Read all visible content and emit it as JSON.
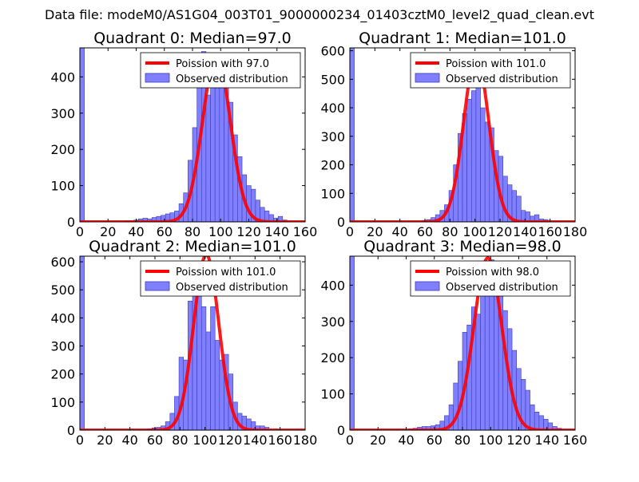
{
  "figure": {
    "suptitle": "Data file: modeM0/AS1G04_003T01_9000000234_01403cztM0_level2_quad_clean.evt"
  },
  "colors": {
    "bar_fill": "#8080ff",
    "bar_edge": "#3a3ac0",
    "curve": "#ff0000",
    "legend_border": "#000000"
  },
  "chart_data": [
    {
      "type": "bar",
      "title": "Quadrant 0: Median=97.0",
      "xlim": [
        0,
        160
      ],
      "ylim": [
        0,
        480
      ],
      "xticks": [
        0,
        20,
        40,
        60,
        80,
        100,
        120,
        140,
        160
      ],
      "yticks": [
        0,
        100,
        200,
        300,
        400
      ],
      "bin_width": 3.2,
      "legend": [
        "Poission with 97.0",
        "Observed distribution"
      ],
      "bins_x": [
        0,
        32,
        35.2,
        38.4,
        41.6,
        44.8,
        48,
        51.2,
        54.4,
        57.6,
        60.8,
        64,
        67.2,
        70.4,
        73.6,
        76.8,
        80,
        83.2,
        86.4,
        89.6,
        92.8,
        96,
        99.2,
        102.4,
        105.6,
        108.8,
        112,
        115.2,
        118.4,
        121.6,
        124.8,
        128,
        131.2,
        134.4,
        137.6,
        140.8,
        144
      ],
      "bins_y": [
        480,
        2,
        3,
        5,
        8,
        10,
        8,
        12,
        15,
        18,
        22,
        25,
        30,
        50,
        80,
        170,
        260,
        390,
        470,
        350,
        380,
        390,
        400,
        430,
        330,
        240,
        180,
        130,
        100,
        90,
        60,
        40,
        30,
        20,
        10,
        15,
        5
      ],
      "poisson_mean": 97.0,
      "poisson_peak": 460
    },
    {
      "type": "bar",
      "title": "Quadrant 1: Median=101.0",
      "xlim": [
        0,
        180
      ],
      "ylim": [
        0,
        610
      ],
      "xticks": [
        0,
        20,
        40,
        60,
        80,
        100,
        120,
        140,
        160,
        180
      ],
      "yticks": [
        0,
        100,
        200,
        300,
        400,
        500,
        600
      ],
      "bin_width": 3.6,
      "legend": [
        "Poission with 101.0",
        "Observed distribution"
      ],
      "bins_x": [
        0,
        57.6,
        61.2,
        64.8,
        68.4,
        72,
        75.6,
        79.2,
        82.8,
        86.4,
        90,
        93.6,
        97.2,
        100.8,
        104.4,
        108,
        111.6,
        115.2,
        118.8,
        122.4,
        126,
        129.6,
        133.2,
        136.8,
        140.4,
        144,
        147.6,
        151.2,
        154.8
      ],
      "bins_y": [
        610,
        5,
        8,
        15,
        25,
        40,
        60,
        110,
        200,
        310,
        380,
        430,
        460,
        480,
        400,
        350,
        330,
        250,
        230,
        160,
        130,
        110,
        90,
        40,
        35,
        20,
        25,
        10,
        8
      ],
      "poisson_mean": 101.0,
      "poisson_peak": 580
    },
    {
      "type": "bar",
      "title": "Quadrant 2: Median=101.0",
      "xlim": [
        0,
        180
      ],
      "ylim": [
        0,
        620
      ],
      "xticks": [
        0,
        20,
        40,
        60,
        80,
        100,
        120,
        140,
        160,
        180
      ],
      "yticks": [
        0,
        100,
        200,
        300,
        400,
        500,
        600
      ],
      "bin_width": 3.6,
      "legend": [
        "Poission with 101.0",
        "Observed distribution"
      ],
      "bins_x": [
        0,
        54,
        57.6,
        61.2,
        64.8,
        68.4,
        72,
        75.6,
        79.2,
        82.8,
        86.4,
        90,
        93.6,
        97.2,
        100.8,
        104.4,
        108,
        111.6,
        115.2,
        118.8,
        122.4,
        126,
        129.6,
        133.2,
        136.8,
        140.4,
        144,
        147.6
      ],
      "bins_y": [
        620,
        5,
        8,
        10,
        15,
        30,
        60,
        120,
        260,
        250,
        460,
        500,
        580,
        440,
        350,
        440,
        320,
        250,
        270,
        200,
        100,
        60,
        50,
        40,
        30,
        15,
        15,
        10
      ],
      "poisson_mean": 101.0,
      "poisson_peak": 625
    },
    {
      "type": "bar",
      "title": "Quadrant 3: Median=98.0",
      "xlim": [
        0,
        160
      ],
      "ylim": [
        0,
        480
      ],
      "xticks": [
        0,
        20,
        40,
        60,
        80,
        100,
        120,
        140,
        160
      ],
      "yticks": [
        0,
        100,
        200,
        300,
        400
      ],
      "bin_width": 3.2,
      "legend": [
        "Poission with 98.0",
        "Observed distribution"
      ],
      "bins_x": [
        0,
        41.6,
        44.8,
        48,
        51.2,
        54.4,
        57.6,
        60.8,
        64,
        67.2,
        70.4,
        73.6,
        76.8,
        80,
        83.2,
        86.4,
        89.6,
        92.8,
        96,
        99.2,
        102.4,
        105.6,
        108.8,
        112,
        115.2,
        118.4,
        121.6,
        124.8,
        128,
        131.2,
        134.4,
        137.6,
        140.8,
        144,
        147.2
      ],
      "bins_y": [
        480,
        3,
        5,
        8,
        10,
        10,
        12,
        15,
        25,
        40,
        70,
        130,
        190,
        270,
        290,
        340,
        320,
        380,
        410,
        470,
        380,
        370,
        330,
        280,
        220,
        170,
        140,
        110,
        70,
        50,
        40,
        30,
        20,
        10,
        5
      ],
      "poisson_mean": 98.0,
      "poisson_peak": 475
    }
  ]
}
